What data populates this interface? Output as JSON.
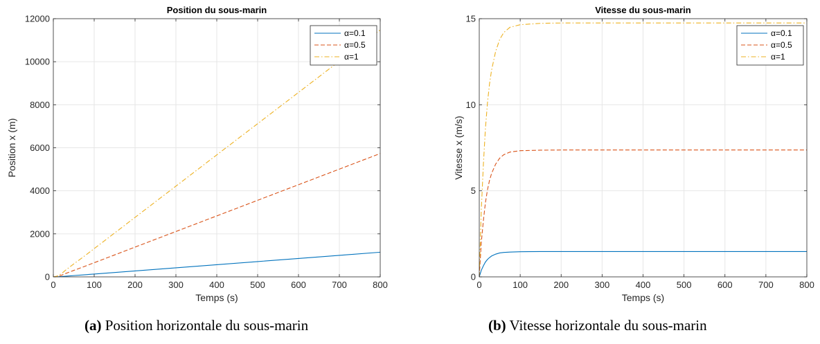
{
  "chart_data": [
    {
      "type": "line",
      "title": "Position du sous-marin",
      "xlabel": "Temps (s)",
      "ylabel": "Position x (m)",
      "xlim": [
        0,
        800
      ],
      "ylim": [
        0,
        12000
      ],
      "xticks": [
        0,
        100,
        200,
        300,
        400,
        500,
        600,
        700,
        800
      ],
      "yticks": [
        0,
        2000,
        4000,
        6000,
        8000,
        10000,
        12000
      ],
      "grid": true,
      "legend_position": "top-right",
      "series": [
        {
          "name": "α=0.1",
          "color": "#0072BD",
          "style": "solid",
          "points": [
            [
              0,
              0
            ],
            [
              10,
              4
            ],
            [
              20,
              15
            ],
            [
              30,
              31
            ],
            [
              50,
              60
            ],
            [
              75,
              95
            ],
            [
              100,
              131
            ],
            [
              150,
              204
            ],
            [
              200,
              276
            ],
            [
              300,
              421
            ],
            [
              400,
              566
            ],
            [
              500,
              711
            ],
            [
              600,
              856
            ],
            [
              700,
              1001
            ],
            [
              800,
              1146
            ]
          ]
        },
        {
          "name": "α=0.5",
          "color": "#D95319",
          "style": "dashed",
          "points": [
            [
              0,
              0
            ],
            [
              10,
              20
            ],
            [
              20,
              75
            ],
            [
              30,
              155
            ],
            [
              50,
              300
            ],
            [
              75,
              475
            ],
            [
              100,
              657
            ],
            [
              150,
              1020
            ],
            [
              200,
              1383
            ],
            [
              300,
              2108
            ],
            [
              400,
              2833
            ],
            [
              500,
              3558
            ],
            [
              600,
              4283
            ],
            [
              700,
              5008
            ],
            [
              800,
              5733
            ]
          ]
        },
        {
          "name": "α=1",
          "color": "#EDB120",
          "style": "dashdot",
          "points": [
            [
              0,
              0
            ],
            [
              10,
              40
            ],
            [
              20,
              150
            ],
            [
              30,
              310
            ],
            [
              50,
              600
            ],
            [
              75,
              950
            ],
            [
              100,
              1313
            ],
            [
              150,
              2039
            ],
            [
              200,
              2765
            ],
            [
              300,
              4217
            ],
            [
              400,
              5669
            ],
            [
              500,
              7121
            ],
            [
              600,
              8573
            ],
            [
              700,
              10025
            ],
            [
              800,
              11477
            ]
          ]
        }
      ]
    },
    {
      "type": "line",
      "title": "Vitesse du sous-marin",
      "xlabel": "Temps (s)",
      "ylabel": "Vitesse x (m/s)",
      "xlim": [
        0,
        800
      ],
      "ylim": [
        0,
        15
      ],
      "xticks": [
        0,
        100,
        200,
        300,
        400,
        500,
        600,
        700,
        800
      ],
      "yticks": [
        0,
        5,
        10,
        15
      ],
      "grid": true,
      "legend_position": "top-right",
      "series": [
        {
          "name": "α=0.1",
          "color": "#0072BD",
          "style": "solid",
          "points": [
            [
              0,
              0
            ],
            [
              5,
              0.38
            ],
            [
              10,
              0.64
            ],
            [
              15,
              0.86
            ],
            [
              20,
              1.01
            ],
            [
              25,
              1.12
            ],
            [
              30,
              1.21
            ],
            [
              40,
              1.32
            ],
            [
              50,
              1.39
            ],
            [
              60,
              1.42
            ],
            [
              75,
              1.44
            ],
            [
              100,
              1.46
            ],
            [
              150,
              1.47
            ],
            [
              200,
              1.47
            ],
            [
              800,
              1.47
            ]
          ]
        },
        {
          "name": "α=0.5",
          "color": "#D95319",
          "style": "dashed",
          "points": [
            [
              0,
              0
            ],
            [
              5,
              2.0
            ],
            [
              10,
              3.25
            ],
            [
              15,
              4.3
            ],
            [
              20,
              5.05
            ],
            [
              25,
              5.6
            ],
            [
              30,
              6.0
            ],
            [
              40,
              6.55
            ],
            [
              50,
              6.9
            ],
            [
              60,
              7.1
            ],
            [
              75,
              7.25
            ],
            [
              100,
              7.33
            ],
            [
              150,
              7.36
            ],
            [
              200,
              7.37
            ],
            [
              800,
              7.37
            ]
          ]
        },
        {
          "name": "α=1",
          "color": "#EDB120",
          "style": "dashdot",
          "points": [
            [
              0,
              0
            ],
            [
              5,
              3.9
            ],
            [
              10,
              6.5
            ],
            [
              15,
              8.6
            ],
            [
              20,
              10.1
            ],
            [
              25,
              11.2
            ],
            [
              30,
              12.0
            ],
            [
              40,
              13.1
            ],
            [
              50,
              13.8
            ],
            [
              60,
              14.2
            ],
            [
              75,
              14.5
            ],
            [
              100,
              14.65
            ],
            [
              150,
              14.73
            ],
            [
              200,
              14.75
            ],
            [
              800,
              14.75
            ]
          ]
        }
      ]
    }
  ],
  "captions": [
    {
      "label": "(a)",
      "text": "Position horizontale du sous-marin"
    },
    {
      "label": "(b)",
      "text": "Vitesse horizontale du sous-marin"
    }
  ]
}
